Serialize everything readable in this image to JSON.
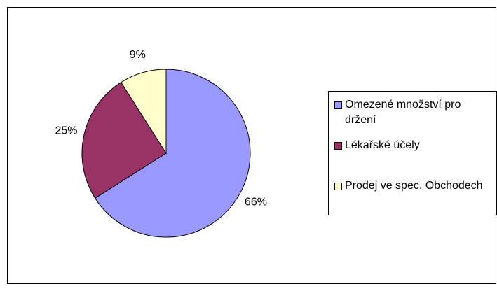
{
  "chart_data": {
    "type": "pie",
    "categories": [
      "Omezené množství pro držení",
      "Lékařské účely",
      "Prodej ve spec. Obchodech"
    ],
    "values": [
      66,
      25,
      9
    ],
    "value_labels": [
      "66%",
      "25%",
      "9%"
    ],
    "colors": [
      "#9999ff",
      "#993366",
      "#ffffcc"
    ],
    "legend": "right"
  }
}
